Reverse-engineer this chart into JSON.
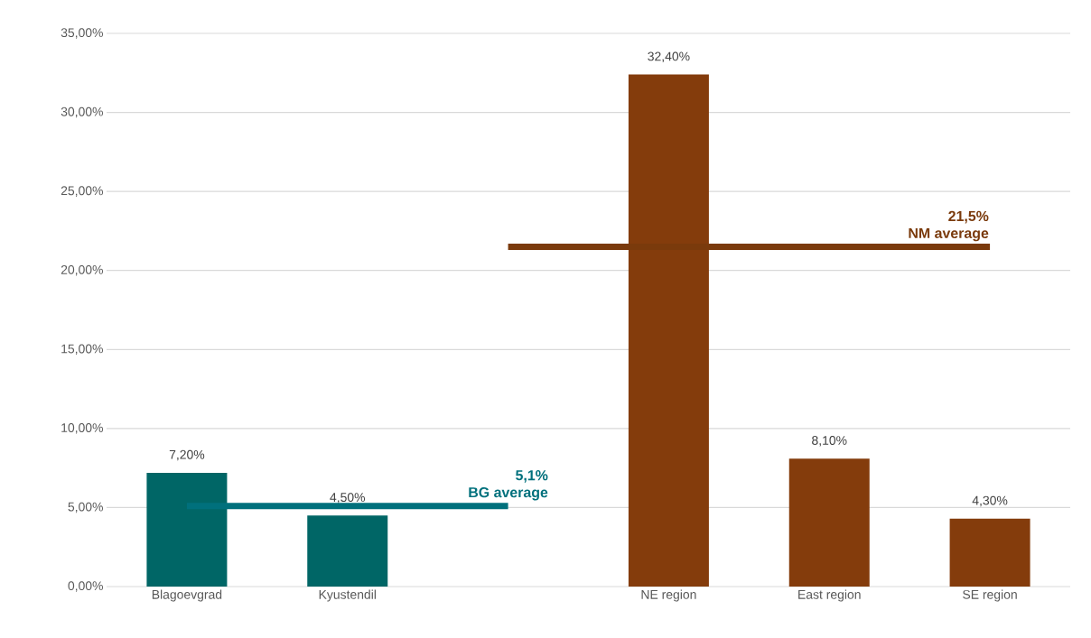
{
  "chart_data": {
    "type": "bar",
    "categories": [
      "Blagoevgrad",
      "Kyustendil",
      null,
      "NE region",
      "East region",
      "SE region"
    ],
    "series": [
      {
        "values": [
          7.2,
          4.5,
          null,
          32.4,
          8.1,
          4.3
        ],
        "colors": [
          "#006666",
          "#006666",
          "#006666",
          "#843c0c",
          "#843c0c",
          "#843c0c"
        ],
        "value_labels": [
          "7,20%",
          "4,50%",
          null,
          "32,40%",
          "8,10%",
          "4,30%"
        ]
      },
      {
        "type": "line",
        "name": "BG average",
        "color": "#00707c",
        "values": [
          5.1,
          5.1,
          5.1,
          null,
          null,
          null
        ],
        "value_labels": [
          null,
          null,
          "5,1%",
          null,
          null,
          null
        ]
      },
      {
        "type": "line",
        "name": "NM average",
        "color": "#7a3a0c",
        "values": [
          null,
          null,
          21.5,
          21.5,
          21.5,
          21.5
        ],
        "value_labels": [
          null,
          null,
          null,
          null,
          null,
          "21,5%"
        ]
      }
    ],
    "ylim": [
      0,
      35
    ],
    "yticks": [
      {
        "value": 0,
        "label": "0,00%"
      },
      {
        "value": 5,
        "label": "5,00%"
      },
      {
        "value": 10,
        "label": "10,00%"
      },
      {
        "value": 15,
        "label": "15,00%"
      },
      {
        "value": 20,
        "label": "20,00%"
      },
      {
        "value": 25,
        "label": "25,00%"
      },
      {
        "value": 30,
        "label": "30,00%"
      },
      {
        "value": 35,
        "label": "35,00%"
      }
    ],
    "grid": "y"
  }
}
